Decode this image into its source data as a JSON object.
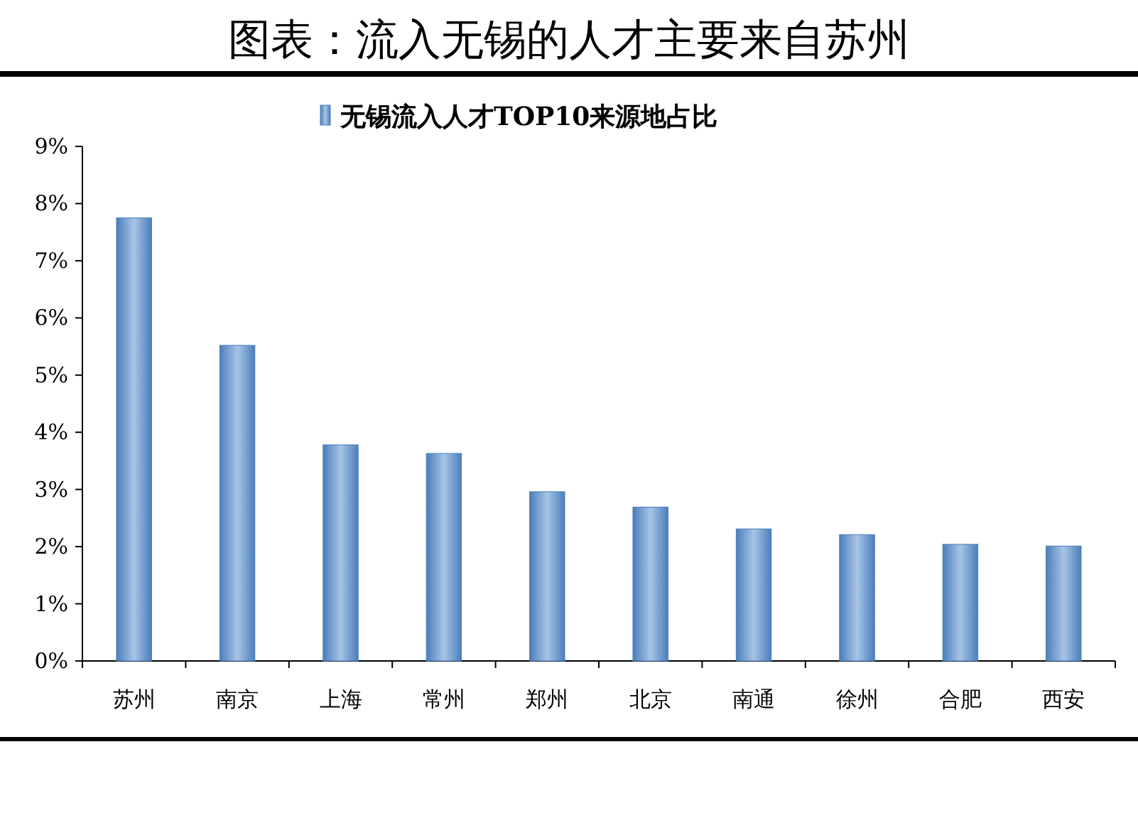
{
  "chart_data": {
    "type": "bar",
    "title": "图表：流入无锡的人才主要来自苏州",
    "categories": [
      "苏州",
      "南京",
      "上海",
      "常州",
      "郑州",
      "北京",
      "南通",
      "徐州",
      "合肥",
      "西安"
    ],
    "series": [
      {
        "name": "无锡流入人才TOP10来源地占比",
        "color": "#4a7ebb",
        "values": [
          7.75,
          5.52,
          3.78,
          3.63,
          2.96,
          2.69,
          2.31,
          2.21,
          2.04,
          2.01
        ]
      }
    ],
    "ylim": [
      0,
      9
    ],
    "yticks": [
      {
        "value": 0,
        "label": "0%"
      },
      {
        "value": 1,
        "label": "1%"
      },
      {
        "value": 2,
        "label": "2%"
      },
      {
        "value": 3,
        "label": "3%"
      },
      {
        "value": 4,
        "label": "4%"
      },
      {
        "value": 5,
        "label": "5%"
      },
      {
        "value": 6,
        "label": "6%"
      },
      {
        "value": 7,
        "label": "7%"
      },
      {
        "value": 8,
        "label": "8%"
      },
      {
        "value": 9,
        "label": "9%"
      }
    ],
    "legend": "top"
  }
}
